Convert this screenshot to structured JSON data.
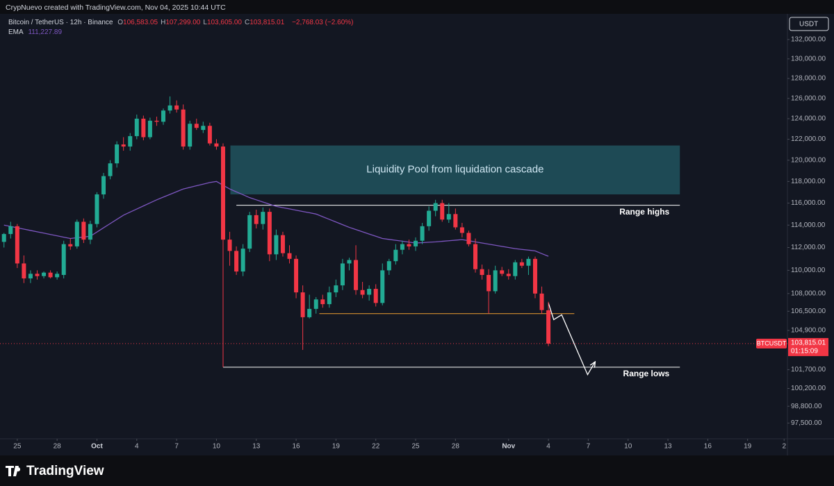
{
  "header": {
    "credit": "CrypNuevo created with TradingView.com, Nov 04, 2025 10:44 UTC"
  },
  "footer": {
    "brand": "TradingView"
  },
  "chart_data": {
    "type": "candlestick",
    "title": "Bitcoin / TetherUS · 12h · Binance",
    "legend_ohlc": [
      {
        "key": "O",
        "value": "106,583.05"
      },
      {
        "key": "H",
        "value": "107,299.00"
      },
      {
        "key": "L",
        "value": "103,605.00"
      },
      {
        "key": "C",
        "value": "103,815.01"
      }
    ],
    "legend_change": "−2,768.03 (−2.60%)",
    "legend_ema_value": "111,227.89",
    "currency": "USDT",
    "price_tag": {
      "symbol": "BTCUSDT",
      "label": "103,815.01",
      "countdown": "01:15:09"
    },
    "yscale": "log",
    "grid": false,
    "up_color": "#22ab94",
    "down_color": "#f23645",
    "xlim": [
      -0.6,
      118
    ],
    "ylim": [
      96400,
      134700
    ],
    "xticks": [
      {
        "value": 2,
        "label": "25"
      },
      {
        "value": 8,
        "label": "28"
      },
      {
        "value": 14,
        "label": "Oct"
      },
      {
        "value": 20,
        "label": "4"
      },
      {
        "value": 26,
        "label": "7"
      },
      {
        "value": 32,
        "label": "10"
      },
      {
        "value": 38,
        "label": "13"
      },
      {
        "value": 44,
        "label": "16"
      },
      {
        "value": 50,
        "label": "19"
      },
      {
        "value": 56,
        "label": "22"
      },
      {
        "value": 62,
        "label": "25"
      },
      {
        "value": 68,
        "label": "28"
      },
      {
        "value": 76,
        "label": "Nov"
      },
      {
        "value": 82,
        "label": "4"
      },
      {
        "value": 88,
        "label": "7"
      },
      {
        "value": 94,
        "label": "10"
      },
      {
        "value": 100,
        "label": "13"
      },
      {
        "value": 106,
        "label": "16"
      },
      {
        "value": 112,
        "label": "19"
      },
      {
        "value": 117.5,
        "label": "2"
      }
    ],
    "yticks": [
      {
        "value": 132000,
        "label": "132,000.00"
      },
      {
        "value": 130000,
        "label": "130,000.00"
      },
      {
        "value": 128000,
        "label": "128,000.00"
      },
      {
        "value": 126000,
        "label": "126,000.00"
      },
      {
        "value": 124000,
        "label": "124,000.00"
      },
      {
        "value": 122000,
        "label": "122,000.00"
      },
      {
        "value": 120000,
        "label": "120,000.00"
      },
      {
        "value": 118000,
        "label": "118,000.00"
      },
      {
        "value": 116000,
        "label": "116,000.00"
      },
      {
        "value": 114000,
        "label": "114,000.00"
      },
      {
        "value": 112000,
        "label": "112,000.00"
      },
      {
        "value": 110000,
        "label": "110,000.00"
      },
      {
        "value": 108000,
        "label": "108,000.00"
      },
      {
        "value": 106500,
        "label": "106,500.00"
      },
      {
        "value": 104900,
        "label": "104,900.00"
      },
      {
        "value": 101700,
        "label": "101,700.00"
      },
      {
        "value": 100200,
        "label": "100,200.00"
      },
      {
        "value": 98800,
        "label": "98,800.00"
      },
      {
        "value": 97500,
        "label": "97,500.00"
      }
    ],
    "x": [
      0,
      1,
      2,
      3,
      4,
      5,
      6,
      7,
      8,
      9,
      10,
      11,
      12,
      13,
      14,
      15,
      16,
      17,
      18,
      19,
      20,
      21,
      22,
      23,
      24,
      25,
      26,
      27,
      28,
      29,
      30,
      31,
      32,
      33,
      34,
      35,
      36,
      37,
      38,
      39,
      40,
      41,
      42,
      43,
      44,
      45,
      46,
      47,
      48,
      49,
      50,
      51,
      52,
      53,
      54,
      55,
      56,
      57,
      58,
      59,
      60,
      61,
      62,
      63,
      64,
      65,
      66,
      67,
      68,
      69,
      70,
      71,
      72,
      73,
      74,
      75,
      76,
      77,
      78,
      79,
      80,
      81,
      82
    ],
    "open": [
      112500,
      113200,
      113900,
      110600,
      109300,
      109700,
      109500,
      109800,
      109400,
      109600,
      112300,
      112100,
      114300,
      112700,
      114100,
      116800,
      118500,
      119700,
      121500,
      121300,
      122300,
      124000,
      122200,
      123800,
      123700,
      124800,
      125300,
      124900,
      121300,
      123500,
      122900,
      123300,
      121600,
      121300,
      112700,
      111700,
      109900,
      111900,
      114900,
      114100,
      115200,
      111400,
      113100,
      111500,
      111000,
      108100,
      106000,
      106700,
      107500,
      107100,
      108100,
      108700,
      110600,
      110900,
      108300,
      107900,
      108400,
      107200,
      110000,
      110800,
      111800,
      112300,
      112100,
      112600,
      113900,
      115300,
      116000,
      114500,
      115000,
      113800,
      113300,
      112300,
      110100,
      109600,
      108200,
      110000,
      109700,
      109500,
      110700,
      110400,
      111000,
      108000,
      106583.05
    ],
    "high": [
      113300,
      114300,
      114100,
      111300,
      110000,
      110000,
      109900,
      110000,
      109900,
      112600,
      112800,
      114500,
      114600,
      114400,
      117000,
      118800,
      120000,
      121800,
      122200,
      122600,
      124400,
      124300,
      124100,
      124200,
      125000,
      126200,
      125800,
      125400,
      123800,
      124000,
      123700,
      123600,
      122000,
      121600,
      113400,
      112100,
      112300,
      115200,
      115400,
      115600,
      115500,
      113600,
      113400,
      112200,
      111300,
      108700,
      107900,
      107700,
      107900,
      108600,
      109200,
      111000,
      111100,
      112200,
      109000,
      108700,
      108800,
      110600,
      111000,
      112300,
      112600,
      112700,
      112900,
      114200,
      115700,
      116300,
      116300,
      116000,
      115500,
      114200,
      113500,
      112800,
      110500,
      110100,
      110400,
      110300,
      110100,
      110900,
      111000,
      111200,
      111200,
      108600,
      107299
    ],
    "low": [
      112000,
      112800,
      110200,
      108900,
      108900,
      109200,
      109300,
      109300,
      109200,
      109300,
      111800,
      111900,
      112400,
      112300,
      113800,
      116400,
      118200,
      119300,
      120900,
      120900,
      122000,
      121900,
      122000,
      123300,
      123400,
      124500,
      124600,
      121000,
      121000,
      122900,
      122600,
      121400,
      121000,
      101900,
      110400,
      109600,
      109500,
      111600,
      113700,
      113600,
      110800,
      110900,
      111200,
      110600,
      107600,
      103300,
      105900,
      106300,
      106800,
      106800,
      107700,
      108300,
      110000,
      107900,
      107600,
      107400,
      106900,
      107000,
      109600,
      110500,
      111400,
      111800,
      111700,
      112300,
      113500,
      114800,
      114300,
      114200,
      113600,
      112900,
      112100,
      109800,
      109200,
      106300,
      108000,
      109500,
      109200,
      109200,
      110200,
      109600,
      107600,
      106300,
      103605
    ],
    "close": [
      113200,
      113900,
      110600,
      109300,
      109700,
      109500,
      109800,
      109400,
      109700,
      112300,
      112100,
      114300,
      112700,
      114100,
      116800,
      118500,
      119700,
      121500,
      121300,
      122300,
      124000,
      122200,
      123800,
      123700,
      124800,
      125300,
      124900,
      121300,
      123500,
      123100,
      123300,
      121600,
      121300,
      112700,
      111700,
      109900,
      111900,
      114900,
      114100,
      115200,
      111400,
      113100,
      111500,
      111000,
      108100,
      106000,
      106700,
      107500,
      107100,
      108100,
      108700,
      110600,
      110900,
      108300,
      107900,
      108400,
      107200,
      110000,
      110800,
      111800,
      112300,
      112100,
      112600,
      113900,
      115300,
      116000,
      114500,
      115000,
      113800,
      113300,
      112300,
      110100,
      109600,
      108200,
      110000,
      109700,
      109500,
      110700,
      110400,
      111000,
      108000,
      106600,
      103815.01
    ],
    "overlays": [
      {
        "name": "EMA",
        "color": "#7e57c2",
        "values": [
          114000,
          113880,
          113760,
          113640,
          113520,
          113400,
          113280,
          113160,
          113040,
          112920,
          112800,
          112870,
          112930,
          113000,
          113380,
          113760,
          114140,
          114520,
          114900,
          115180,
          115460,
          115740,
          116020,
          116300,
          116550,
          116800,
          117050,
          117300,
          117450,
          117600,
          117750,
          117900,
          118000,
          117650,
          117300,
          117030,
          116770,
          116500,
          116300,
          116100,
          115900,
          115700,
          115580,
          115470,
          115350,
          115230,
          115120,
          115000,
          114760,
          114520,
          114280,
          114040,
          113800,
          113600,
          113400,
          113200,
          113000,
          112800,
          112720,
          112640,
          112560,
          112480,
          112400,
          112430,
          112470,
          112500,
          112550,
          112600,
          112650,
          112700,
          112600,
          112500,
          112400,
          112300,
          112200,
          112100,
          112000,
          111900,
          111830,
          111770,
          111700,
          111460,
          111228
        ]
      }
    ],
    "annotations": [
      {
        "type": "zone",
        "text": "Liquidity Pool from liquidation cascade",
        "x": [
          34.1,
          101.8
        ],
        "y": [
          121400,
          116800
        ],
        "color": "#1e4a55"
      },
      {
        "type": "hline",
        "text": "Range highs",
        "x": [
          35,
          101.8
        ],
        "y": 115800,
        "color": "#ffffff"
      },
      {
        "type": "hline",
        "text": "Range lows",
        "x": [
          33,
          101.8
        ],
        "y": 101900,
        "color": "#ffffff"
      },
      {
        "type": "hline",
        "x": [
          47.5,
          85.9
        ],
        "y": 106300,
        "color": "#f0a030"
      },
      {
        "type": "path",
        "x": [
          82,
          82.8,
          84,
          87.9,
          89
        ],
        "y": [
          107200,
          105800,
          106200,
          101300,
          102300
        ],
        "color": "#ffffff"
      }
    ]
  }
}
